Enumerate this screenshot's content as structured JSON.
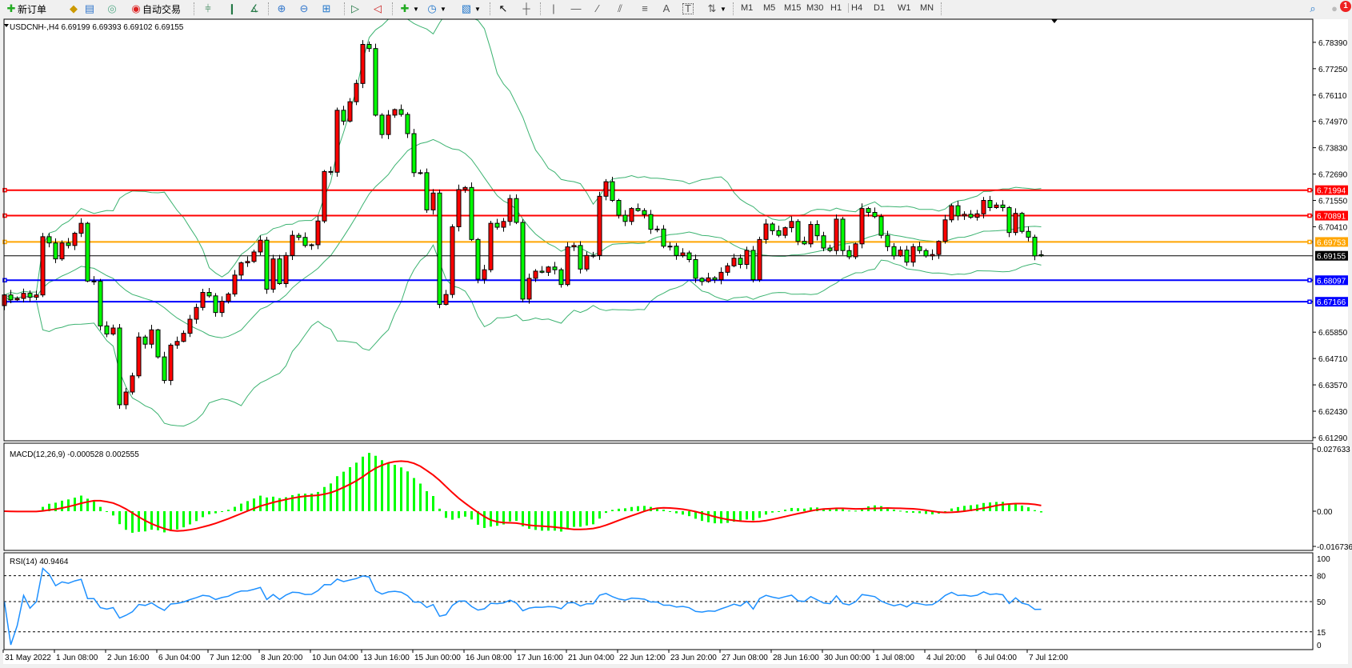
{
  "toolbar": {
    "new_order": "新订单",
    "auto_trading": "自动交易",
    "timeframes": [
      "M1",
      "M5",
      "M15",
      "M30",
      "H1",
      "H4",
      "D1",
      "W1",
      "MN"
    ],
    "active_timeframe": "H4",
    "notification_count": "1",
    "icons": [
      "new-order-icon",
      "market-watch-icon",
      "data-window-icon",
      "signals-icon",
      "auto-trading-icon",
      "bar-chart-icon",
      "candlestick-icon",
      "line-chart-icon",
      "zoom-in-icon",
      "zoom-out-icon",
      "tile-windows-icon",
      "auto-scroll-icon",
      "chart-shift-icon",
      "indicators-icon",
      "periods-icon",
      "templates-icon",
      "cursor-icon",
      "crosshair-icon",
      "vertical-line-icon",
      "horizontal-line-icon",
      "trendline-icon",
      "equidistant-channel-icon",
      "fibonacci-icon",
      "text-icon",
      "text-label-icon",
      "arrows-icon",
      "search-icon",
      "notification-icon"
    ]
  },
  "chart": {
    "header": "USDCNH-,H4  6.69199 6.69393 6.69102 6.69155",
    "colors": {
      "up": "#ff0000",
      "down": "#00ff00",
      "bands": "#3cb371",
      "macd_hist": "#00ff00",
      "macd_signal": "#ff0000",
      "rsi": "#1e90ff"
    }
  },
  "chart_data": {
    "type": "candlestick",
    "symbol": "USDCNH-",
    "timeframe": "H4",
    "closes": [
      6.6746,
      6.6725,
      6.6731,
      6.6753,
      6.6736,
      6.6746,
      6.6998,
      6.6971,
      6.6902,
      6.6971,
      6.696,
      6.7013,
      6.7056,
      6.6806,
      6.6805,
      6.6612,
      6.6577,
      6.6603,
      6.6271,
      6.6326,
      6.6396,
      6.6564,
      6.6533,
      6.6595,
      6.6478,
      6.6376,
      6.6529,
      6.6545,
      6.658,
      6.6641,
      6.6692,
      6.6757,
      6.6742,
      6.667,
      6.6719,
      6.675,
      6.6832,
      6.6885,
      6.6891,
      6.6932,
      6.6983,
      6.6771,
      6.6902,
      6.6795,
      6.6917,
      6.7004,
      6.6995,
      6.696,
      6.6963,
      6.7066,
      6.728,
      6.7277,
      6.7545,
      6.7498,
      6.7582,
      6.7661,
      6.783,
      6.7812,
      6.7524,
      6.744,
      6.7524,
      6.7548,
      6.7527,
      6.7444,
      6.7275,
      6.7275,
      6.7114,
      6.7187,
      6.6705,
      6.6748,
      6.7041,
      6.7202,
      6.7211,
      6.6986,
      6.6814,
      6.6855,
      6.7056,
      6.7039,
      6.7064,
      6.7163,
      6.706,
      6.6728,
      6.6818,
      6.6849,
      6.6844,
      6.6867,
      6.6855,
      6.6791,
      6.6954,
      6.696,
      6.6858,
      6.6917,
      6.6917,
      6.7173,
      6.7236,
      6.7155,
      6.7091,
      6.7064,
      6.712,
      6.7111,
      6.7094,
      6.703,
      6.7031,
      6.6957,
      6.6957,
      6.6917,
      6.6928,
      6.6899,
      6.6818,
      6.6804,
      6.682,
      6.6812,
      6.6844,
      6.6872,
      6.6905,
      6.6878,
      6.6939,
      6.6812,
      6.6986,
      6.7053,
      6.7024,
      6.7004,
      6.7037,
      6.7064,
      6.6978,
      6.6967,
      6.7051,
      6.7002,
      6.6949,
      6.6938,
      6.7074,
      6.6938,
      6.6911,
      6.6967,
      6.712,
      6.7103,
      6.7085,
      6.7004,
      6.6955,
      6.6915,
      6.694,
      6.6888,
      6.6955,
      6.6938,
      6.6915,
      6.6921,
      6.6978,
      6.7071,
      6.7132,
      6.7088,
      6.7095,
      6.7082,
      6.7097,
      6.7155,
      6.7124,
      6.7135,
      6.7124,
      6.7016,
      6.7099,
      6.7021,
      6.6996,
      6.6915,
      6.69155
    ],
    "first_open": 6.67,
    "last_bar": {
      "open": 6.69199,
      "high": 6.69393,
      "low": 6.69102,
      "close": 6.69155
    },
    "price_range": [
      6.6115,
      6.7939
    ],
    "price_ticks": [
      "6.78390",
      "6.77250",
      "6.76110",
      "6.74970",
      "6.73830",
      "6.72690",
      "6.71550",
      "6.70410",
      "6.65850",
      "6.64710",
      "6.63570",
      "6.62430",
      "6.61290"
    ],
    "hlines": [
      {
        "price": "6.71994",
        "color": "#ff0000"
      },
      {
        "price": "6.70891",
        "color": "#ff0000"
      },
      {
        "price": "6.69753",
        "color": "#ffa500"
      },
      {
        "price": "6.68097",
        "color": "#0000ff"
      },
      {
        "price": "6.67166",
        "color": "#0000ff"
      }
    ],
    "bid_line": {
      "price": "6.69155",
      "color": "#000000"
    },
    "time_labels": [
      "31 May 2022",
      "1 Jun 08:00",
      "2 Jun 16:00",
      "6 Jun 04:00",
      "7 Jun 12:00",
      "8 Jun 20:00",
      "10 Jun 04:00",
      "13 Jun 16:00",
      "15 Jun 00:00",
      "16 Jun 08:00",
      "17 Jun 16:00",
      "21 Jun 04:00",
      "22 Jun 12:00",
      "23 Jun 20:00",
      "27 Jun 08:00",
      "28 Jun 16:00",
      "30 Jun 00:00",
      "1 Jul 08:00",
      "4 Jul 20:00",
      "6 Jul 04:00",
      "7 Jul 12:00"
    ],
    "bollinger": {
      "period": 20,
      "deviation": 2
    },
    "macd": {
      "label": "MACD(12,26,9) -0.000528 0.002555",
      "fast": 12,
      "slow": 26,
      "signal": 9,
      "range": [
        -0.016736,
        0.027633
      ],
      "ticks": [
        "0.027633",
        "0.00",
        "-0.016736"
      ]
    },
    "rsi": {
      "label": "RSI(14) 40.9464",
      "period": 14,
      "levels": [
        80,
        50,
        15
      ],
      "ticks": [
        "100",
        "80",
        "50",
        "15",
        "0"
      ]
    }
  }
}
